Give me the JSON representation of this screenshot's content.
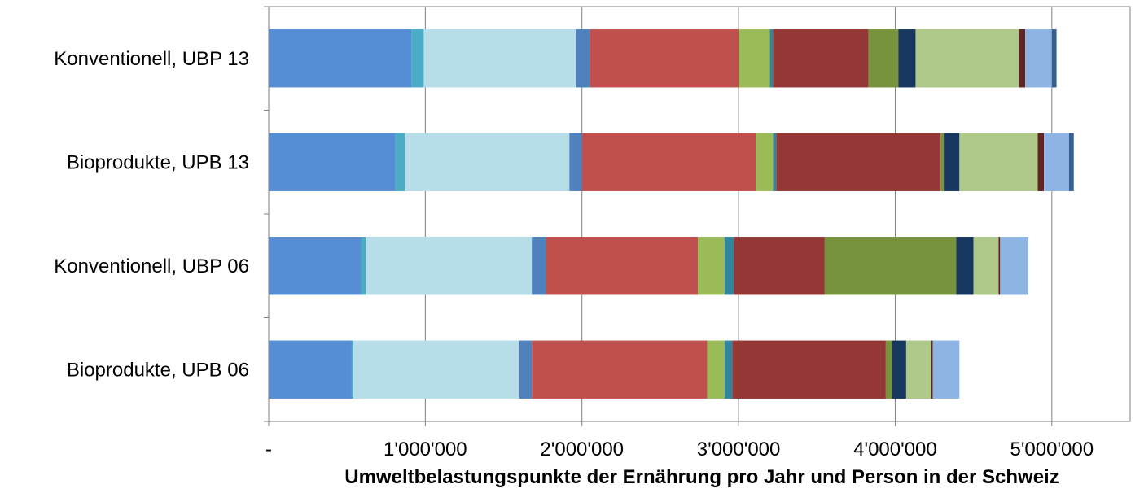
{
  "chart_data": {
    "type": "bar",
    "orientation": "horizontal",
    "stacked": true,
    "xlabel": "Umweltbelastungspunkte der Ernährung pro Jahr und Person in der Schweiz",
    "ylabel": "",
    "xlim": [
      0,
      5500000
    ],
    "xticks": [
      0,
      1000000,
      2000000,
      3000000,
      4000000,
      5000000
    ],
    "xtick_labels": [
      "-",
      "1'000'000",
      "2'000'000",
      "3'000'000",
      "4'000'000",
      "5'000'000"
    ],
    "grid": "vertical",
    "legend": "none",
    "categories": [
      "Konventionell, UBP 13",
      "Bioprodukte, UPB 13",
      "Konventionell, UBP 06",
      "Bioprodukte, UPB 06"
    ],
    "series": [
      {
        "color": "#558ED5",
        "values": [
          910000,
          810000,
          590000,
          530000
        ]
      },
      {
        "color": "#4BACC6",
        "values": [
          80000,
          60000,
          30000,
          10000
        ]
      },
      {
        "color": "#B7DEE8",
        "values": [
          970000,
          1050000,
          1060000,
          1060000
        ]
      },
      {
        "color": "#4F81BD",
        "values": [
          90000,
          80000,
          90000,
          80000
        ]
      },
      {
        "color": "#C0504D",
        "values": [
          950000,
          1110000,
          970000,
          1120000
        ]
      },
      {
        "color": "#9BBB59",
        "values": [
          200000,
          110000,
          170000,
          110000
        ]
      },
      {
        "color": "#31859C",
        "values": [
          20000,
          20000,
          60000,
          50000
        ]
      },
      {
        "color": "#953735",
        "values": [
          610000,
          1050000,
          580000,
          980000
        ]
      },
      {
        "color": "#77933C",
        "values": [
          190000,
          20000,
          840000,
          40000
        ]
      },
      {
        "color": "#17375E",
        "values": [
          110000,
          100000,
          110000,
          90000
        ]
      },
      {
        "color": "#ADC889",
        "values": [
          660000,
          500000,
          160000,
          160000
        ]
      },
      {
        "color": "#632523",
        "values": [
          40000,
          40000,
          10000,
          10000
        ]
      },
      {
        "color": "#8DB4E2",
        "values": [
          170000,
          160000,
          180000,
          170000
        ]
      },
      {
        "color": "#376092",
        "values": [
          30000,
          30000,
          0,
          0
        ]
      }
    ]
  }
}
